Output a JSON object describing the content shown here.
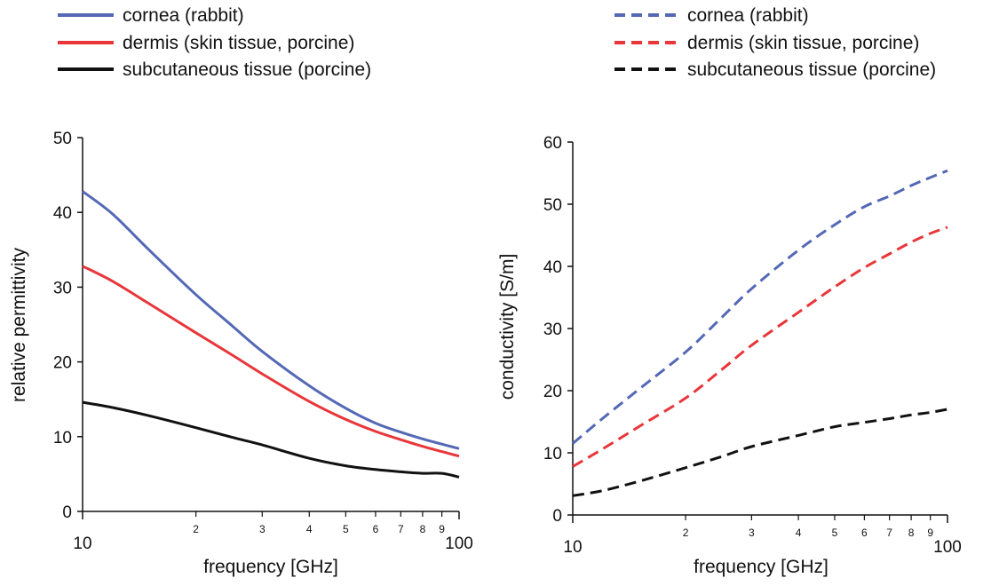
{
  "chart_data": [
    {
      "type": "line",
      "title": "",
      "xlabel": "frequency [GHz]",
      "ylabel": "relative permittivity",
      "xscale": "log",
      "xlim": [
        10,
        100
      ],
      "ylim": [
        0,
        50
      ],
      "yticks": [
        0,
        10,
        20,
        30,
        40,
        50
      ],
      "ytick_labels": [
        "0",
        "10",
        "20",
        "30",
        "40",
        "50"
      ],
      "xtick_major_labels": [
        "10",
        "100"
      ],
      "xtick_minor_labels": [
        "2",
        "3",
        "4",
        "5",
        "6",
        "7",
        "8",
        "9"
      ],
      "legend_position": "top-left",
      "series": [
        {
          "name": "cornea (rabbit)",
          "color": "#5468b5",
          "dash": "solid",
          "x": [
            10,
            12,
            15,
            20,
            25,
            30,
            40,
            50,
            60,
            70,
            80,
            90,
            100
          ],
          "y": [
            42.8,
            39.8,
            35.0,
            29.0,
            24.8,
            21.4,
            16.8,
            13.8,
            11.8,
            10.6,
            9.7,
            9.0,
            8.4
          ]
        },
        {
          "name": "dermis (skin tissue, porcine)",
          "color": "#e8363a",
          "dash": "solid",
          "x": [
            10,
            12,
            15,
            20,
            25,
            30,
            40,
            50,
            60,
            70,
            80,
            90,
            100
          ],
          "y": [
            32.8,
            30.8,
            27.8,
            23.9,
            20.9,
            18.4,
            14.7,
            12.3,
            10.7,
            9.6,
            8.7,
            8.0,
            7.4
          ]
        },
        {
          "name": "subcutaneous tissue (porcine)",
          "color": "#111111",
          "dash": "solid",
          "x": [
            10,
            12,
            15,
            20,
            25,
            30,
            40,
            50,
            60,
            70,
            80,
            90,
            100
          ],
          "y": [
            14.6,
            13.9,
            12.8,
            11.2,
            9.9,
            8.9,
            7.1,
            6.1,
            5.6,
            5.3,
            5.1,
            5.1,
            4.6
          ]
        }
      ]
    },
    {
      "type": "line",
      "title": "",
      "xlabel": "frequency [GHz]",
      "ylabel": "conductivity [S/m]",
      "xscale": "log",
      "xlim": [
        10,
        100
      ],
      "ylim": [
        0,
        60
      ],
      "yticks": [
        0,
        10,
        20,
        30,
        40,
        50,
        60
      ],
      "ytick_labels": [
        "0",
        "10",
        "20",
        "30",
        "40",
        "50",
        "60"
      ],
      "xtick_major_labels": [
        "10",
        "100"
      ],
      "xtick_minor_labels": [
        "2",
        "3",
        "4",
        "5",
        "6",
        "7",
        "8",
        "9"
      ],
      "legend_position": "top-right",
      "series": [
        {
          "name": "cornea (rabbit)",
          "color": "#5468b5",
          "dash": "dashed",
          "x": [
            10,
            12,
            15,
            20,
            25,
            30,
            40,
            50,
            60,
            70,
            80,
            90,
            100
          ],
          "y": [
            11.5,
            15.5,
            20.2,
            26.2,
            31.8,
            36.4,
            42.6,
            46.7,
            49.6,
            51.3,
            53.0,
            54.3,
            55.4
          ]
        },
        {
          "name": "dermis (skin tissue, porcine)",
          "color": "#e8363a",
          "dash": "dashed",
          "x": [
            10,
            12,
            15,
            20,
            25,
            30,
            40,
            50,
            60,
            70,
            80,
            90,
            100
          ],
          "y": [
            7.8,
            10.6,
            14.2,
            18.8,
            23.4,
            27.3,
            32.6,
            36.7,
            39.8,
            42.0,
            43.9,
            45.3,
            46.3
          ]
        },
        {
          "name": "subcutaneous tissue (porcine)",
          "color": "#111111",
          "dash": "dashed",
          "x": [
            10,
            12,
            15,
            20,
            25,
            30,
            40,
            50,
            60,
            70,
            80,
            90,
            100
          ],
          "y": [
            3.1,
            3.9,
            5.4,
            7.6,
            9.4,
            11.0,
            12.8,
            14.2,
            14.9,
            15.5,
            16.1,
            16.5,
            17.0
          ]
        }
      ]
    }
  ]
}
